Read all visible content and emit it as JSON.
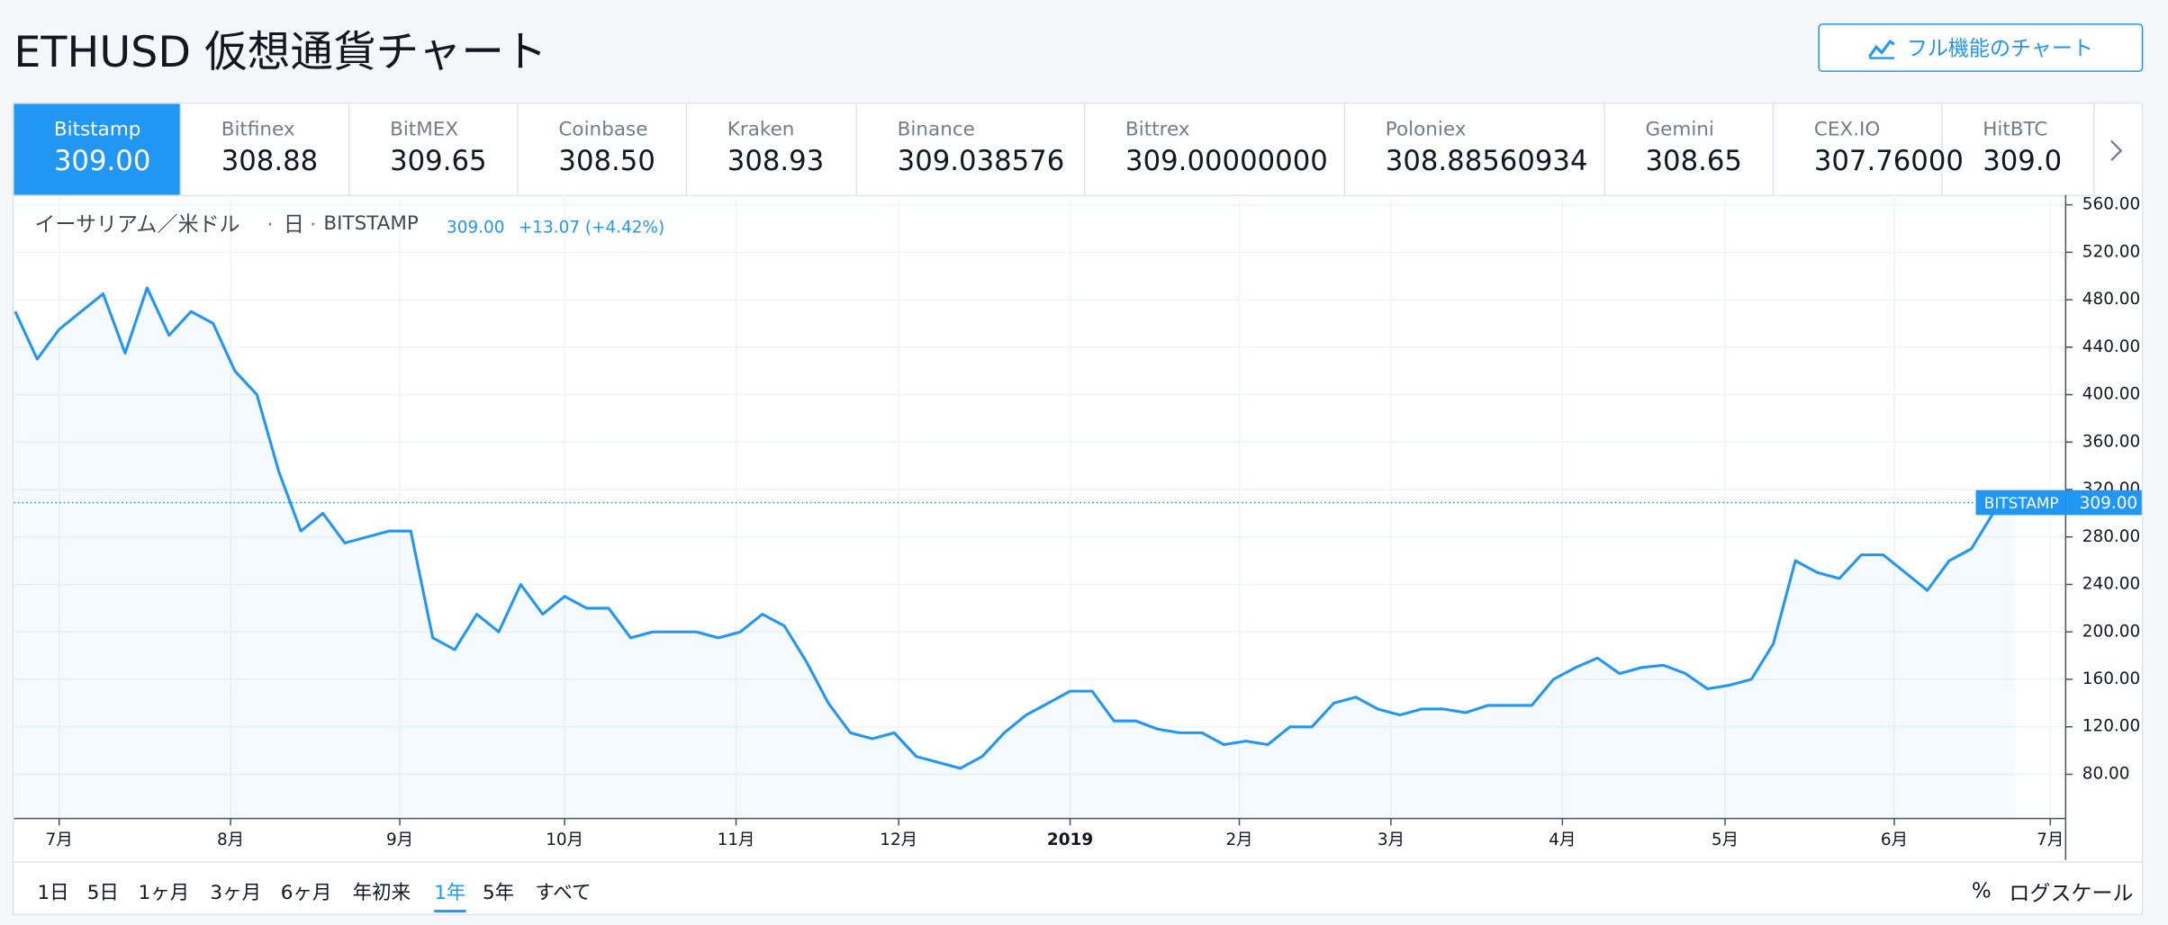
{
  "header": {
    "title": "ETHUSD 仮想通貨チャート",
    "button": "フル機能のチャート"
  },
  "exchanges": [
    {
      "name": "Bitstamp",
      "price": "309.00"
    },
    {
      "name": "Bitfinex",
      "price": "308.88"
    },
    {
      "name": "BitMEX",
      "price": "309.65"
    },
    {
      "name": "Coinbase",
      "price": "308.50"
    },
    {
      "name": "Kraken",
      "price": "308.93"
    },
    {
      "name": "Binance",
      "price": "309.038576"
    },
    {
      "name": "Bittrex",
      "price": "309.00000000"
    },
    {
      "name": "Poloniex",
      "price": "308.88560934"
    },
    {
      "name": "Gemini",
      "price": "308.65"
    },
    {
      "name": "CEX.IO",
      "price": "307.76000"
    },
    {
      "name": "HitBTC",
      "price": "309.0"
    }
  ],
  "active_exchange": 0,
  "legend": {
    "symbol": "イーサリアム／米ドル",
    "interval": "日",
    "source": "BITSTAMP",
    "last": "309.00",
    "change": "+13.07 (+4.42%)"
  },
  "chart_data": {
    "type": "line",
    "color": "#2196f3",
    "values": [
      470,
      430,
      455,
      470,
      485,
      435,
      490,
      450,
      470,
      460,
      420,
      400,
      335,
      285,
      300,
      275,
      280,
      285,
      285,
      195,
      185,
      215,
      200,
      240,
      215,
      230,
      220,
      220,
      195,
      200,
      200,
      200,
      195,
      200,
      215,
      205,
      175,
      140,
      115,
      110,
      115,
      95,
      90,
      85,
      95,
      115,
      130,
      140,
      150,
      150,
      125,
      125,
      118,
      115,
      115,
      105,
      108,
      105,
      120,
      120,
      140,
      145,
      135,
      130,
      135,
      135,
      132,
      138,
      138,
      138,
      160,
      170,
      178,
      165,
      170,
      172,
      165,
      152,
      155,
      160,
      190,
      260,
      250,
      245,
      265,
      265,
      250,
      235,
      260,
      270,
      300,
      309
    ],
    "xlim": [
      0,
      93.3
    ],
    "xticks": [
      {
        "value": 2.0,
        "label": "7月"
      },
      {
        "value": 9.8,
        "label": "8月"
      },
      {
        "value": 17.5,
        "label": "9月"
      },
      {
        "value": 25.0,
        "label": "10月"
      },
      {
        "value": 32.8,
        "label": "11月"
      },
      {
        "value": 40.2,
        "label": "12月"
      },
      {
        "value": 48.0,
        "label": "2019"
      },
      {
        "value": 55.7,
        "label": "2月"
      },
      {
        "value": 62.6,
        "label": "3月"
      },
      {
        "value": 70.4,
        "label": "4月"
      },
      {
        "value": 77.8,
        "label": "5月"
      },
      {
        "value": 85.5,
        "label": "6月"
      },
      {
        "value": 92.6,
        "label": "7月"
      }
    ],
    "ylim": [
      42.7,
      568.3
    ],
    "yticks": [
      {
        "value": 80,
        "label": "80.00"
      },
      {
        "value": 120,
        "label": "120.00"
      },
      {
        "value": 160,
        "label": "160.00"
      },
      {
        "value": 200,
        "label": "200.00"
      },
      {
        "value": 240,
        "label": "240.00"
      },
      {
        "value": 280,
        "label": "280.00"
      },
      {
        "value": 320,
        "label": "320.00"
      },
      {
        "value": 360,
        "label": "360.00"
      },
      {
        "value": 400,
        "label": "400.00"
      },
      {
        "value": 440,
        "label": "440.00"
      },
      {
        "value": 480,
        "label": "480.00"
      },
      {
        "value": 520,
        "label": "520.00"
      },
      {
        "value": 560,
        "label": "560.00"
      }
    ],
    "grid": true,
    "price_tag": {
      "name": "BITSTAMP",
      "value": 309,
      "label": "309.00"
    }
  },
  "range_buttons": [
    "1日",
    "5日",
    "1ヶ月",
    "3ヶ月",
    "6ヶ月",
    "年初来",
    "1年",
    "5年",
    "すべて"
  ],
  "active_range": 6,
  "options": [
    "%",
    "ログスケール"
  ]
}
